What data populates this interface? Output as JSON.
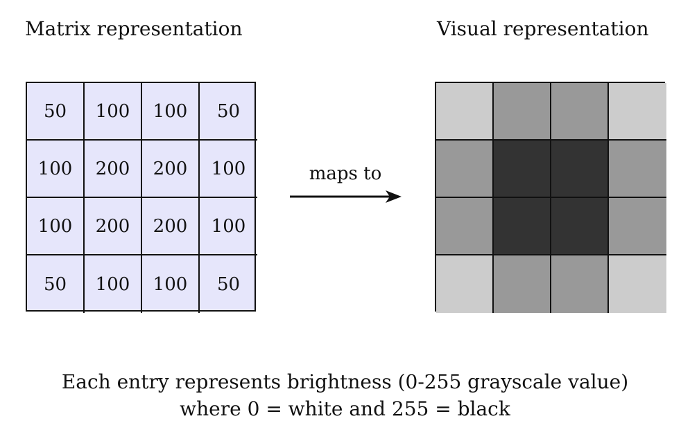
{
  "matrix_title": "Matrix representation",
  "visual_title": "Visual representation",
  "arrow_label": "maps to",
  "matrix": [
    [
      "50",
      "100",
      "100",
      "50"
    ],
    [
      "100",
      "200",
      "200",
      "100"
    ],
    [
      "100",
      "200",
      "200",
      "100"
    ],
    [
      "50",
      "100",
      "100",
      "50"
    ]
  ],
  "visual_colors": [
    [
      "#cccccc",
      "#999999",
      "#999999",
      "#cccccc"
    ],
    [
      "#999999",
      "#333333",
      "#333333",
      "#999999"
    ],
    [
      "#999999",
      "#333333",
      "#333333",
      "#999999"
    ],
    [
      "#cccccc",
      "#999999",
      "#999999",
      "#cccccc"
    ]
  ],
  "matrix_cell_bg": "#e6e6fb",
  "caption": {
    "line1": "Each entry represents brightness (0-255 grayscale value)",
    "line2": "where 0 = white and 255 = black"
  }
}
